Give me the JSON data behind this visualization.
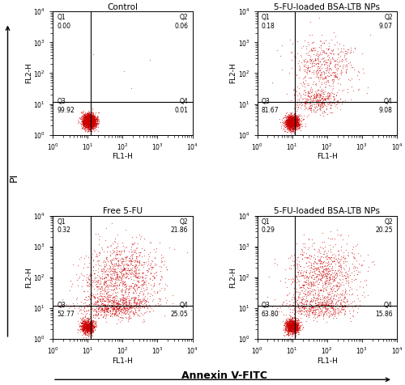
{
  "panels": [
    {
      "title": "Control",
      "row": 0,
      "col": 0,
      "Q1": "0.00",
      "Q2": "0.06",
      "Q3": "99.92",
      "Q4": "0.01",
      "clusters": [
        {
          "x_mean": 1.05,
          "y_mean": 0.45,
          "x_std": 0.1,
          "y_std": 0.12,
          "n": 2000
        }
      ],
      "sparse": [
        {
          "x_mean": 2.0,
          "y_mean": 2.2,
          "x_std": 0.4,
          "y_std": 0.5,
          "n": 4
        }
      ]
    },
    {
      "title": "5-FU-loaded BSA-LTB NPs",
      "row": 0,
      "col": 1,
      "Q1": "0.18",
      "Q2": "9.07",
      "Q3": "81.67",
      "Q4": "9.08",
      "clusters": [
        {
          "x_mean": 1.0,
          "y_mean": 0.4,
          "x_std": 0.1,
          "y_std": 0.12,
          "n": 1400
        },
        {
          "x_mean": 1.9,
          "y_mean": 2.2,
          "x_std": 0.45,
          "y_std": 0.45,
          "n": 500
        },
        {
          "x_mean": 1.7,
          "y_mean": 1.1,
          "x_std": 0.35,
          "y_std": 0.18,
          "n": 350
        }
      ],
      "sparse": []
    },
    {
      "title": "Free 5-FU",
      "row": 1,
      "col": 0,
      "Q1": "0.32",
      "Q2": "21.86",
      "Q3": "52.77",
      "Q4": "25.05",
      "clusters": [
        {
          "x_mean": 1.0,
          "y_mean": 0.4,
          "x_std": 0.1,
          "y_std": 0.12,
          "n": 800
        },
        {
          "x_mean": 2.1,
          "y_mean": 2.1,
          "x_std": 0.55,
          "y_std": 0.55,
          "n": 900
        },
        {
          "x_mean": 1.8,
          "y_mean": 1.05,
          "x_std": 0.5,
          "y_std": 0.18,
          "n": 700
        },
        {
          "x_mean": 1.3,
          "y_mean": 1.7,
          "x_std": 0.3,
          "y_std": 0.4,
          "n": 150
        }
      ],
      "sparse": []
    },
    {
      "title": "5-FU-loaded BSA-LTB NPs",
      "row": 1,
      "col": 1,
      "Q1": "0.29",
      "Q2": "20.25",
      "Q3": "63.80",
      "Q4": "15.86",
      "clusters": [
        {
          "x_mean": 1.0,
          "y_mean": 0.4,
          "x_std": 0.1,
          "y_std": 0.12,
          "n": 1000
        },
        {
          "x_mean": 2.0,
          "y_mean": 2.1,
          "x_std": 0.5,
          "y_std": 0.5,
          "n": 750
        },
        {
          "x_mean": 1.75,
          "y_mean": 1.05,
          "x_std": 0.45,
          "y_std": 0.18,
          "n": 500
        },
        {
          "x_mean": 1.3,
          "y_mean": 1.8,
          "x_std": 0.25,
          "y_std": 0.4,
          "n": 100
        }
      ],
      "sparse": []
    }
  ],
  "dot_color": "#cc0000",
  "dot_size": 0.9,
  "dot_alpha": 0.55,
  "gate_x": 12.0,
  "gate_y": 12.0,
  "xlim": [
    1.0,
    10000.0
  ],
  "ylim": [
    1.0,
    10000.0
  ],
  "xlabel": "FL1-H",
  "ylabel": "FL2-H",
  "outer_xlabel": "Annexin V-FITC",
  "outer_ylabel": "PI",
  "bg_color": "#ffffff"
}
